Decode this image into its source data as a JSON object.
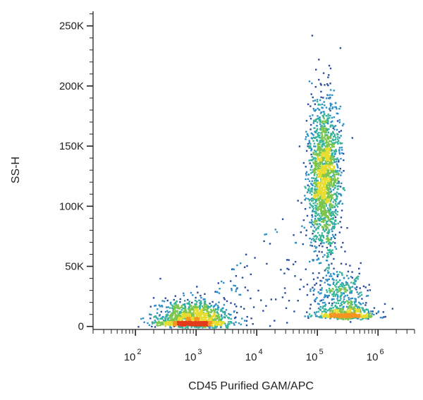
{
  "chart_data": {
    "type": "scatter",
    "subtype": "flow-cytometry-density-dot-plot",
    "xlabel": "CD45 Purified GAM/APC",
    "ylabel": "SS-H",
    "x_scale": "log",
    "xlim": [
      20,
      4000000
    ],
    "ylim": [
      -2500,
      262144
    ],
    "x_ticks": [
      {
        "value": 100,
        "base": "10",
        "exp": "2"
      },
      {
        "value": 1000,
        "base": "10",
        "exp": "3"
      },
      {
        "value": 10000,
        "base": "10",
        "exp": "4"
      },
      {
        "value": 100000,
        "base": "10",
        "exp": "5"
      },
      {
        "value": 1000000,
        "base": "10",
        "exp": "6"
      }
    ],
    "y_ticks": [
      {
        "value": 0,
        "label": "0"
      },
      {
        "value": 50000,
        "label": "50K"
      },
      {
        "value": 100000,
        "label": "100K"
      },
      {
        "value": 150000,
        "label": "150K"
      },
      {
        "value": 200000,
        "label": "200K"
      },
      {
        "value": 250000,
        "label": "250K"
      }
    ],
    "density_colors": [
      "#2b4d9e",
      "#2d8fc6",
      "#34b39a",
      "#7cc54c",
      "#e8dc2e",
      "#f5951f",
      "#e33a1c"
    ],
    "grid": false,
    "legend": "none",
    "populations": [
      {
        "x_center": 900,
        "y_center": 4000,
        "x_spread_decades": 0.28,
        "y_spread": 9000,
        "events": 1300
      },
      {
        "x_center": 130000,
        "y_center": 125000,
        "x_spread_decades": 0.13,
        "y_spread": 32000,
        "events": 1700
      },
      {
        "x_center": 290000,
        "y_center": 9000,
        "x_spread_decades": 0.22,
        "y_spread": 5000,
        "events": 550
      },
      {
        "x_center": 240000,
        "y_center": 30000,
        "x_spread_decades": 0.22,
        "y_spread": 9000,
        "events": 260
      }
    ]
  }
}
